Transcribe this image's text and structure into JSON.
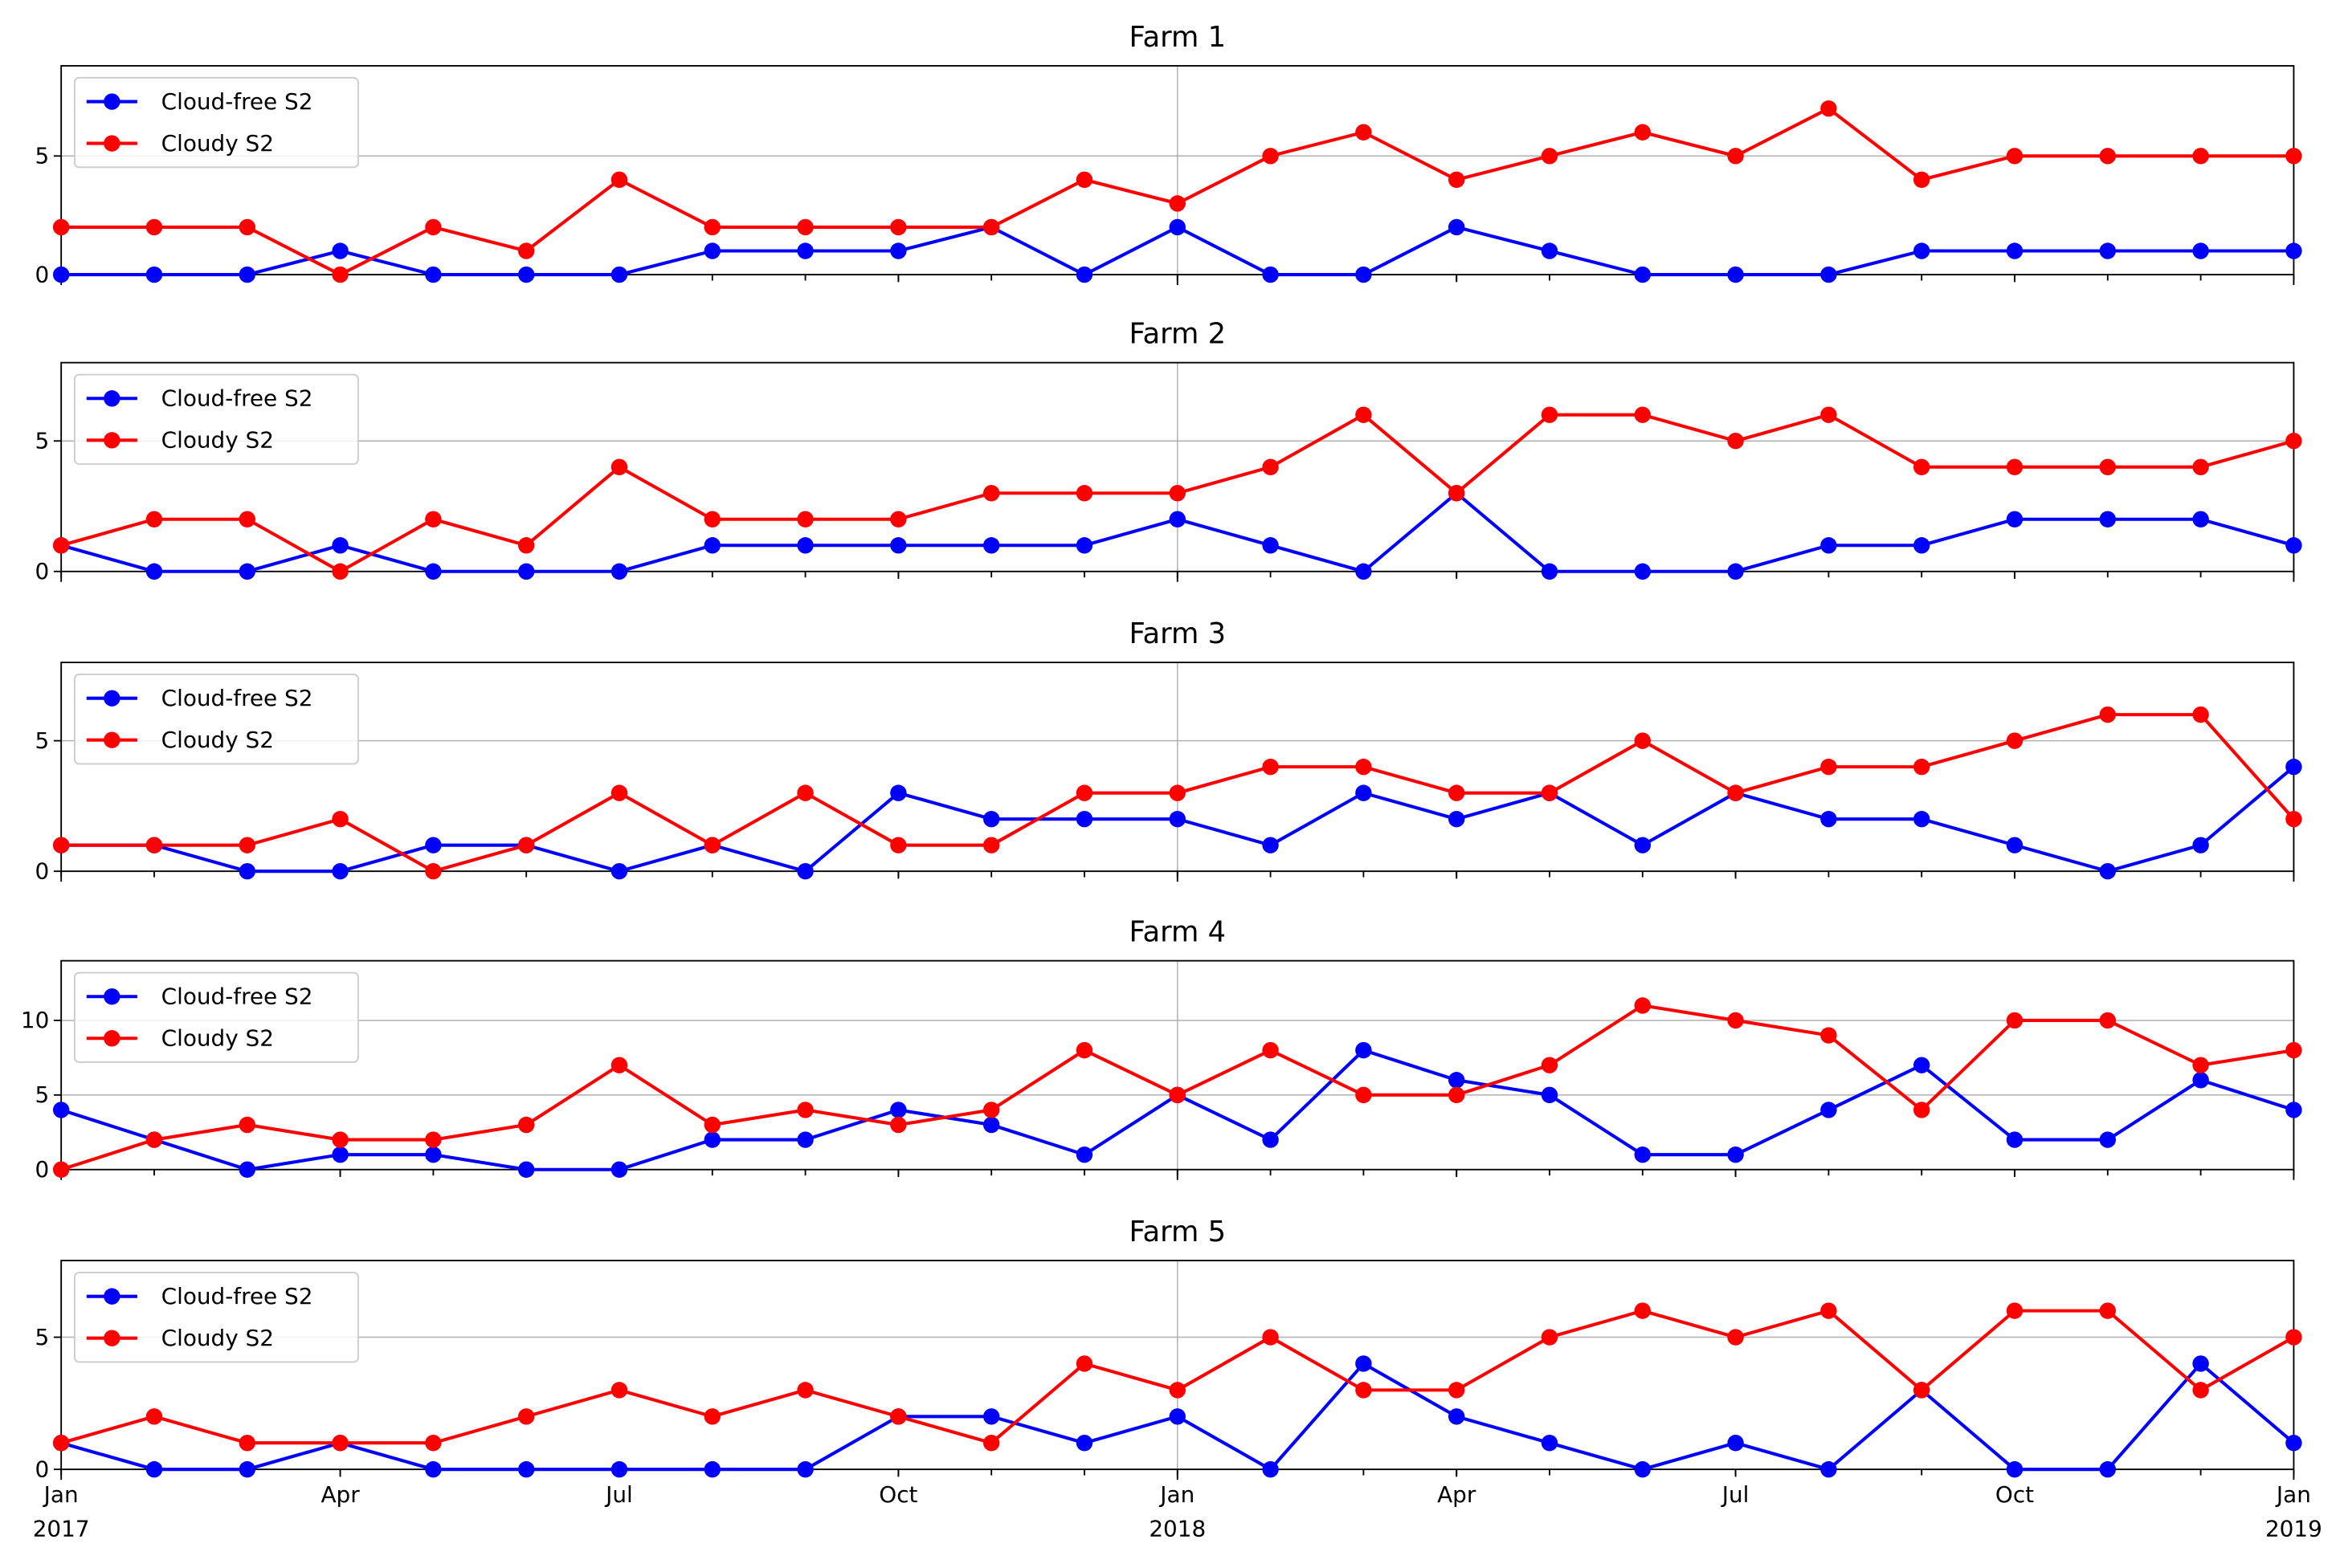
{
  "chart_data": [
    {
      "type": "line",
      "title": "Farm 1",
      "legend": "upper left",
      "grid": true,
      "x": [
        "2017-01",
        "2017-02",
        "2017-03",
        "2017-04",
        "2017-05",
        "2017-06",
        "2017-07",
        "2017-08",
        "2017-09",
        "2017-10",
        "2017-11",
        "2017-12",
        "2018-01",
        "2018-02",
        "2018-03",
        "2018-04",
        "2018-05",
        "2018-06",
        "2018-07",
        "2018-08",
        "2018-09",
        "2018-10",
        "2018-11",
        "2018-12",
        "2019-01"
      ],
      "xlim": [
        "2017-01",
        "2019-01"
      ],
      "xticks": [
        "2017-01",
        "2017-04",
        "2017-07",
        "2017-10",
        "2018-01",
        "2018-04",
        "2018-07",
        "2018-10",
        "2019-01"
      ],
      "ylim": [
        0,
        8.8
      ],
      "yticks": [
        0,
        5
      ],
      "series": [
        {
          "name": "Cloud-free S2",
          "color": "#0000ff",
          "values": [
            0,
            0,
            0,
            1,
            0,
            0,
            0,
            1,
            1,
            1,
            2,
            0,
            2,
            0,
            0,
            2,
            1,
            0,
            0,
            0,
            1,
            1,
            1,
            1,
            1
          ]
        },
        {
          "name": "Cloudy S2",
          "color": "#ff0000",
          "values": [
            2,
            2,
            2,
            0,
            2,
            1,
            4,
            2,
            2,
            2,
            2,
            4,
            3,
            5,
            6,
            4,
            5,
            6,
            5,
            7,
            4,
            5,
            5,
            5,
            5
          ]
        }
      ]
    },
    {
      "type": "line",
      "title": "Farm 2",
      "legend": "upper left",
      "grid": true,
      "x": [
        "2017-01",
        "2017-02",
        "2017-03",
        "2017-04",
        "2017-05",
        "2017-06",
        "2017-07",
        "2017-08",
        "2017-09",
        "2017-10",
        "2017-11",
        "2017-12",
        "2018-01",
        "2018-02",
        "2018-03",
        "2018-04",
        "2018-05",
        "2018-06",
        "2018-07",
        "2018-08",
        "2018-09",
        "2018-10",
        "2018-11",
        "2018-12",
        "2019-01"
      ],
      "xlim": [
        "2017-01",
        "2019-01"
      ],
      "xticks": [
        "2017-01",
        "2017-04",
        "2017-07",
        "2017-10",
        "2018-01",
        "2018-04",
        "2018-07",
        "2018-10",
        "2019-01"
      ],
      "ylim": [
        0,
        8
      ],
      "yticks": [
        0,
        5
      ],
      "series": [
        {
          "name": "Cloud-free S2",
          "color": "#0000ff",
          "values": [
            1,
            0,
            0,
            1,
            0,
            0,
            0,
            1,
            1,
            1,
            1,
            1,
            2,
            1,
            0,
            3,
            0,
            0,
            0,
            1,
            1,
            2,
            2,
            2,
            1
          ]
        },
        {
          "name": "Cloudy S2",
          "color": "#ff0000",
          "values": [
            1,
            2,
            2,
            0,
            2,
            1,
            4,
            2,
            2,
            2,
            3,
            3,
            3,
            4,
            6,
            3,
            6,
            6,
            5,
            6,
            4,
            4,
            4,
            4,
            5
          ]
        }
      ]
    },
    {
      "type": "line",
      "title": "Farm 3",
      "legend": "upper left",
      "grid": true,
      "x": [
        "2017-01",
        "2017-02",
        "2017-03",
        "2017-04",
        "2017-05",
        "2017-06",
        "2017-07",
        "2017-08",
        "2017-09",
        "2017-10",
        "2017-11",
        "2017-12",
        "2018-01",
        "2018-02",
        "2018-03",
        "2018-04",
        "2018-05",
        "2018-06",
        "2018-07",
        "2018-08",
        "2018-09",
        "2018-10",
        "2018-11",
        "2018-12",
        "2019-01"
      ],
      "xlim": [
        "2017-01",
        "2019-01"
      ],
      "xticks": [
        "2017-01",
        "2017-04",
        "2017-07",
        "2017-10",
        "2018-01",
        "2018-04",
        "2018-07",
        "2018-10",
        "2019-01"
      ],
      "ylim": [
        0,
        8
      ],
      "yticks": [
        0,
        5
      ],
      "series": [
        {
          "name": "Cloud-free S2",
          "color": "#0000ff",
          "values": [
            1,
            1,
            0,
            0,
            1,
            1,
            0,
            1,
            0,
            3,
            2,
            2,
            2,
            1,
            3,
            2,
            3,
            1,
            3,
            2,
            2,
            1,
            0,
            1,
            4
          ]
        },
        {
          "name": "Cloudy S2",
          "color": "#ff0000",
          "values": [
            1,
            1,
            1,
            2,
            0,
            1,
            3,
            1,
            3,
            1,
            1,
            3,
            3,
            4,
            4,
            3,
            3,
            5,
            3,
            4,
            4,
            5,
            6,
            6,
            2
          ]
        }
      ]
    },
    {
      "type": "line",
      "title": "Farm 4",
      "legend": "upper left",
      "grid": true,
      "x": [
        "2017-01",
        "2017-02",
        "2017-03",
        "2017-04",
        "2017-05",
        "2017-06",
        "2017-07",
        "2017-08",
        "2017-09",
        "2017-10",
        "2017-11",
        "2017-12",
        "2018-01",
        "2018-02",
        "2018-03",
        "2018-04",
        "2018-05",
        "2018-06",
        "2018-07",
        "2018-08",
        "2018-09",
        "2018-10",
        "2018-11",
        "2018-12",
        "2019-01"
      ],
      "xlim": [
        "2017-01",
        "2019-01"
      ],
      "xticks": [
        "2017-01",
        "2017-04",
        "2017-07",
        "2017-10",
        "2018-01",
        "2018-04",
        "2018-07",
        "2018-10",
        "2019-01"
      ],
      "ylim": [
        0,
        14
      ],
      "yticks": [
        0,
        5,
        10
      ],
      "series": [
        {
          "name": "Cloud-free S2",
          "color": "#0000ff",
          "values": [
            4,
            2,
            0,
            1,
            1,
            0,
            0,
            2,
            2,
            4,
            3,
            1,
            5,
            2,
            8,
            6,
            5,
            1,
            1,
            4,
            7,
            2,
            2,
            6,
            4
          ]
        },
        {
          "name": "Cloudy S2",
          "color": "#ff0000",
          "values": [
            0,
            2,
            3,
            2,
            2,
            3,
            7,
            3,
            4,
            3,
            4,
            8,
            5,
            8,
            5,
            5,
            7,
            11,
            10,
            9,
            4,
            10,
            10,
            7,
            8
          ]
        }
      ]
    },
    {
      "type": "line",
      "title": "Farm 5",
      "legend": "upper left",
      "grid": true,
      "x": [
        "2017-01",
        "2017-02",
        "2017-03",
        "2017-04",
        "2017-05",
        "2017-06",
        "2017-07",
        "2017-08",
        "2017-09",
        "2017-10",
        "2017-11",
        "2017-12",
        "2018-01",
        "2018-02",
        "2018-03",
        "2018-04",
        "2018-05",
        "2018-06",
        "2018-07",
        "2018-08",
        "2018-09",
        "2018-10",
        "2018-11",
        "2018-12",
        "2019-01"
      ],
      "xlim": [
        "2017-01",
        "2019-01"
      ],
      "xticks": [
        {
          "value": "2017-01",
          "label": "Jan"
        },
        {
          "value": "2017-04",
          "label": "Apr"
        },
        {
          "value": "2017-07",
          "label": "Jul"
        },
        {
          "value": "2017-10",
          "label": "Oct"
        },
        {
          "value": "2018-01",
          "label": "Jan"
        },
        {
          "value": "2018-04",
          "label": "Apr"
        },
        {
          "value": "2018-07",
          "label": "Jul"
        },
        {
          "value": "2018-10",
          "label": "Oct"
        },
        {
          "value": "2019-01",
          "label": "Jan"
        }
      ],
      "x_year_ticks": [
        {
          "value": "2017-01",
          "label": "2017"
        },
        {
          "value": "2018-01",
          "label": "2018"
        },
        {
          "value": "2019-01",
          "label": "2019"
        }
      ],
      "ylim": [
        0,
        7.9
      ],
      "yticks": [
        0,
        5
      ],
      "series": [
        {
          "name": "Cloud-free S2",
          "color": "#0000ff",
          "values": [
            1,
            0,
            0,
            1,
            0,
            0,
            0,
            0,
            0,
            2,
            2,
            1,
            2,
            0,
            4,
            2,
            1,
            0,
            1,
            0,
            3,
            0,
            0,
            4,
            1
          ]
        },
        {
          "name": "Cloudy S2",
          "color": "#ff0000",
          "values": [
            1,
            2,
            1,
            1,
            1,
            2,
            3,
            2,
            3,
            2,
            1,
            4,
            3,
            5,
            3,
            3,
            5,
            6,
            5,
            6,
            3,
            6,
            6,
            3,
            5
          ]
        }
      ]
    }
  ]
}
